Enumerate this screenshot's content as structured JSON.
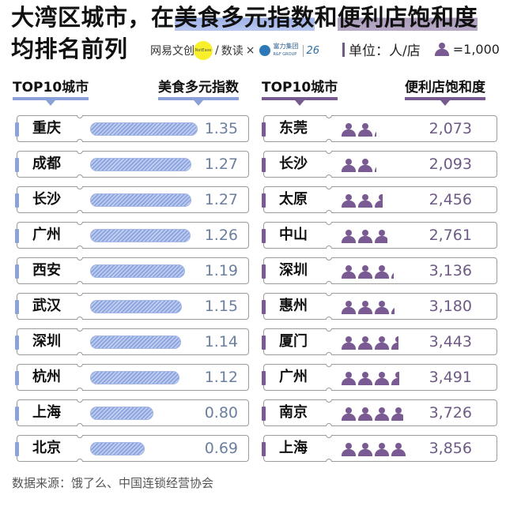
{
  "title": {
    "line1_prefix": "大湾区城市，在",
    "line1_highlight_blue": "美食多元指数",
    "line1_middle": "和",
    "line1_highlight_purple": "便利店饱和度",
    "line2": "均排名前列"
  },
  "credits": {
    "brand1": "网易文创",
    "brand1_badge": "NetEase",
    "separator": "/",
    "brand2": "数读",
    "cross": "×",
    "brand3": "富力集团",
    "brand3_sub": "R&F GROUP",
    "brand3_mark": "26"
  },
  "unit": {
    "label": "单位：人/店",
    "icon_legend": "=1,000"
  },
  "colors": {
    "blue_accent": "#8ca3da",
    "purple_accent": "#7a5a93",
    "blue_value_text": "#6b7f9f",
    "purple_value_text": "#6e5a85",
    "card_border": "#9b9b9b"
  },
  "left_panel": {
    "city_header": "TOP10城市",
    "metric_header": "美食多元指数"
  },
  "right_panel": {
    "city_header": "TOP10城市",
    "metric_header": "便利店饱和度"
  },
  "chart_data": [
    {
      "type": "bar",
      "title": "美食多元指数",
      "categories": [
        "重庆",
        "成都",
        "长沙",
        "广州",
        "西安",
        "武汉",
        "深圳",
        "杭州",
        "上海",
        "北京"
      ],
      "values": [
        1.35,
        1.27,
        1.27,
        1.26,
        1.19,
        1.15,
        1.14,
        1.12,
        0.8,
        0.69
      ],
      "labels": [
        "1.35",
        "1.27",
        "1.27",
        "1.26",
        "1.19",
        "1.15",
        "1.14",
        "1.12",
        "0.80",
        "0.69"
      ],
      "orientation": "horizontal",
      "xlabel": "",
      "ylabel": "TOP10城市",
      "grid": false,
      "legend": null
    },
    {
      "type": "bar",
      "title": "便利店饱和度",
      "subtitle": "单位：人/店（每个图标=1,000）",
      "categories": [
        "东莞",
        "长沙",
        "太原",
        "中山",
        "深圳",
        "惠州",
        "厦门",
        "广州",
        "南京",
        "上海"
      ],
      "values": [
        2073,
        2093,
        2456,
        2761,
        3136,
        3180,
        3443,
        3491,
        3726,
        3856
      ],
      "labels": [
        "2,073",
        "2,093",
        "2,456",
        "2,761",
        "3,136",
        "3,180",
        "3,443",
        "3,491",
        "3,726",
        "3,856"
      ],
      "orientation": "horizontal",
      "unit_per_icon": 1000,
      "xlabel": "",
      "ylabel": "TOP10城市",
      "grid": false,
      "legend": "▲=1,000 (person icon)"
    }
  ],
  "source": "数据来源：饿了么、中国连锁经营协会"
}
